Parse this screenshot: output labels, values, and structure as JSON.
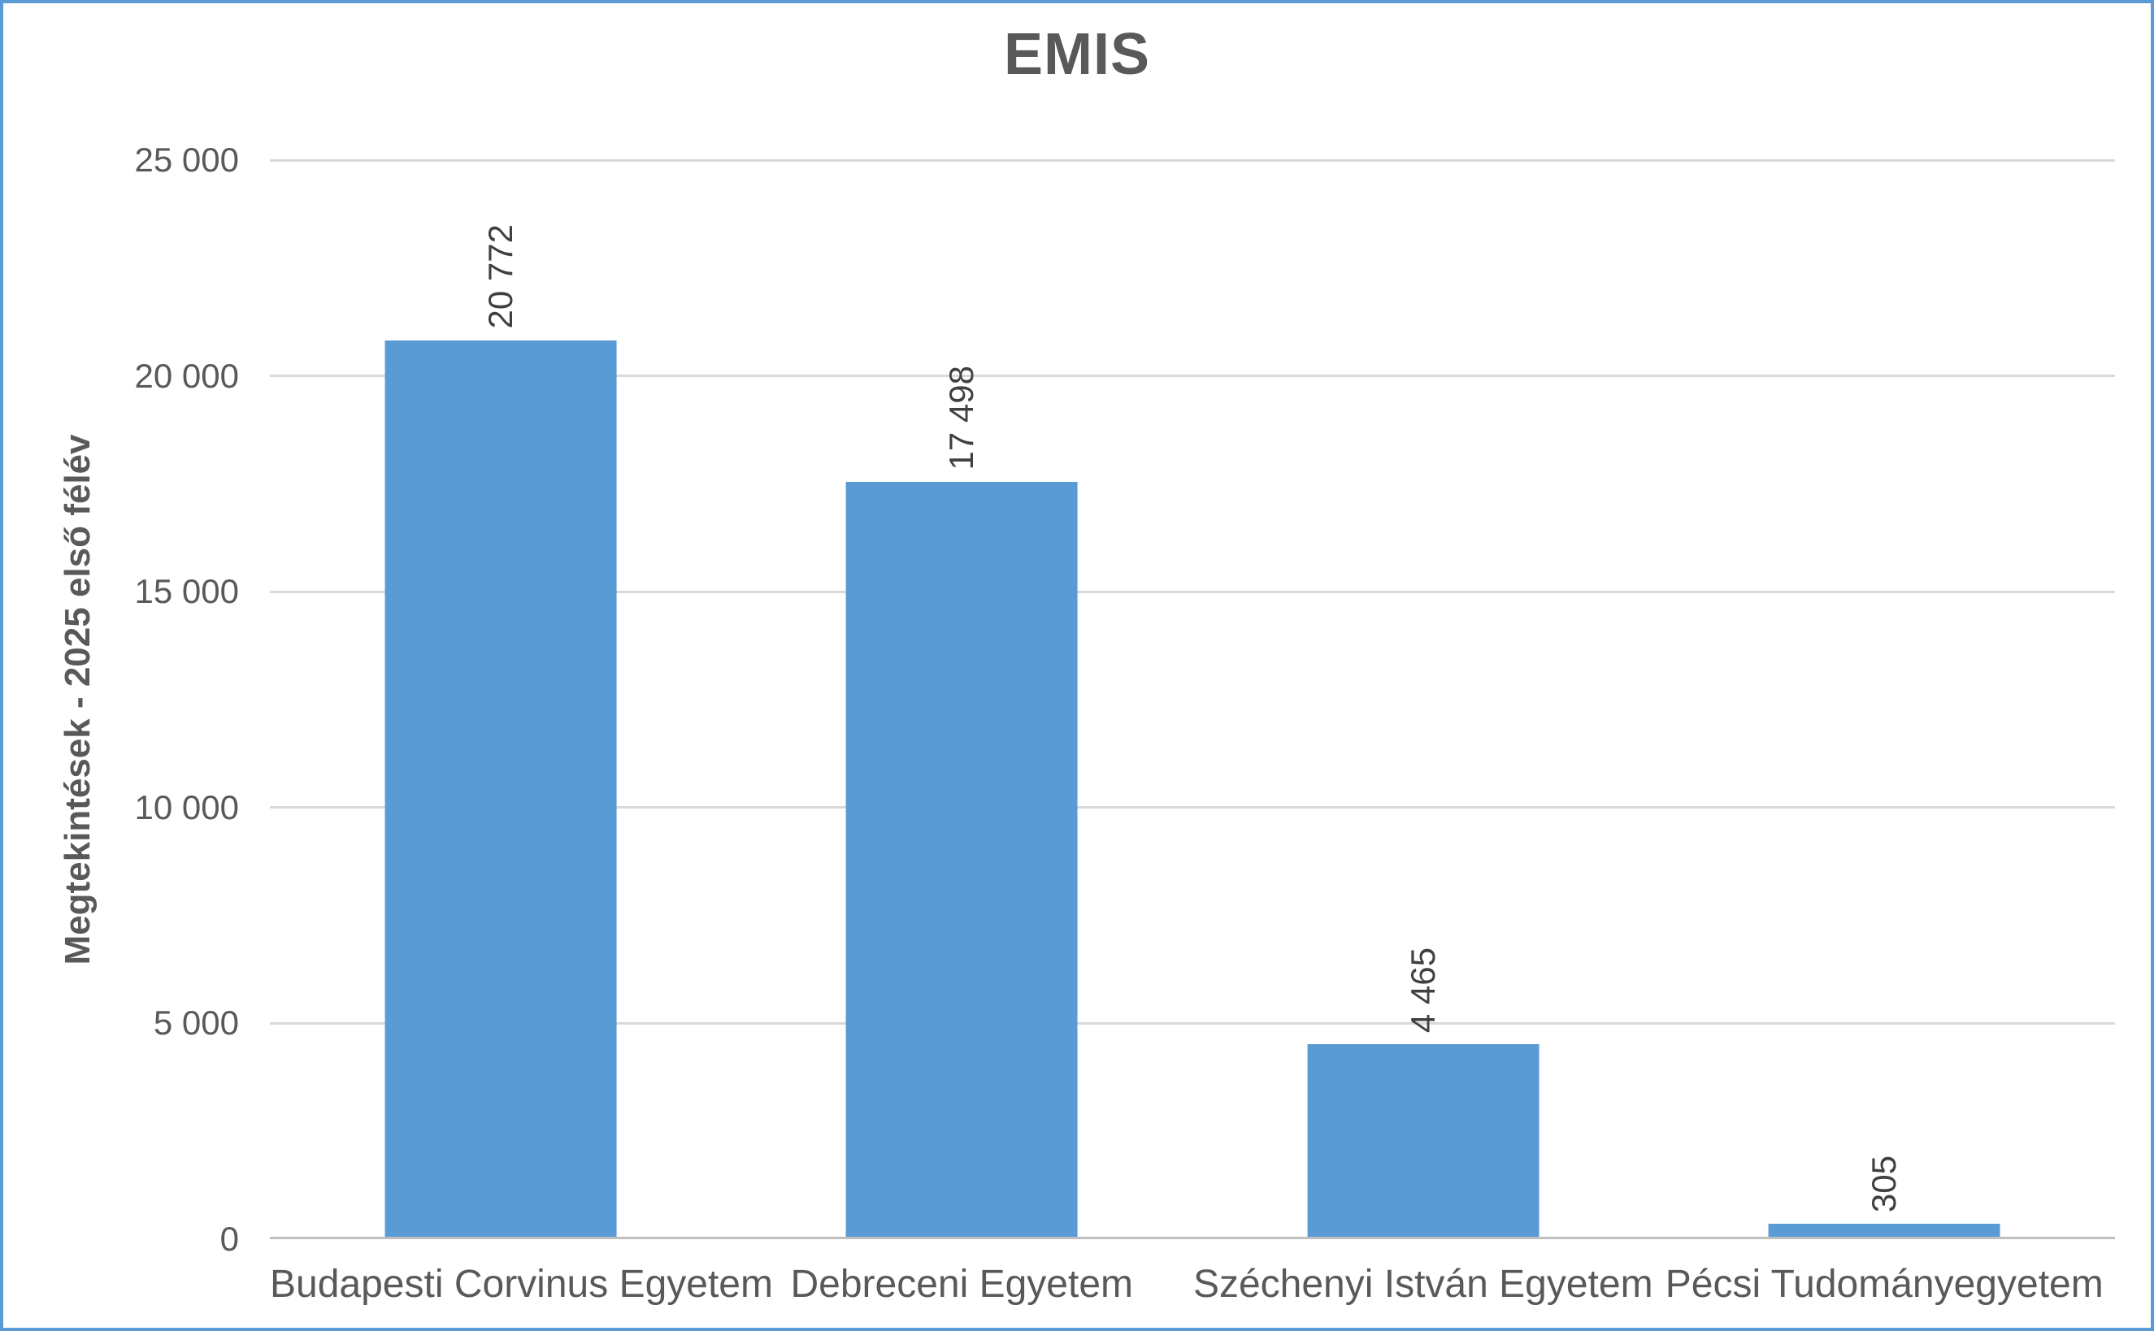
{
  "chart_data": {
    "type": "bar",
    "title": "EMIS",
    "xlabel": "",
    "ylabel": "Megtekintések - 2025 első félév",
    "categories": [
      "Budapesti Corvinus Egyetem",
      "Debreceni Egyetem",
      "Széchenyi István Egyetem",
      "Pécsi Tudományegyetem"
    ],
    "values": [
      20772,
      17498,
      4465,
      305
    ],
    "value_labels": [
      "20 772",
      "17 498",
      "4 465",
      "305"
    ],
    "ylim": [
      0,
      25000
    ],
    "yticks": [
      {
        "value": 0,
        "label": "0"
      },
      {
        "value": 5000,
        "label": "5 000"
      },
      {
        "value": 10000,
        "label": "10 000"
      },
      {
        "value": 15000,
        "label": "15 000"
      },
      {
        "value": 20000,
        "label": "20 000"
      },
      {
        "value": 25000,
        "label": "25 000"
      }
    ],
    "grid": true,
    "legend": "none",
    "data_label_rotation": -90
  },
  "colors": {
    "bar": "#5B9BD5",
    "frame_border": "#5B9BD5",
    "gridline": "#D9D9D9",
    "axis_line": "#BFBFBF",
    "title_text": "#595959",
    "axis_text": "#595959",
    "data_label_text": "#404040",
    "background": "#FFFFFF"
  }
}
